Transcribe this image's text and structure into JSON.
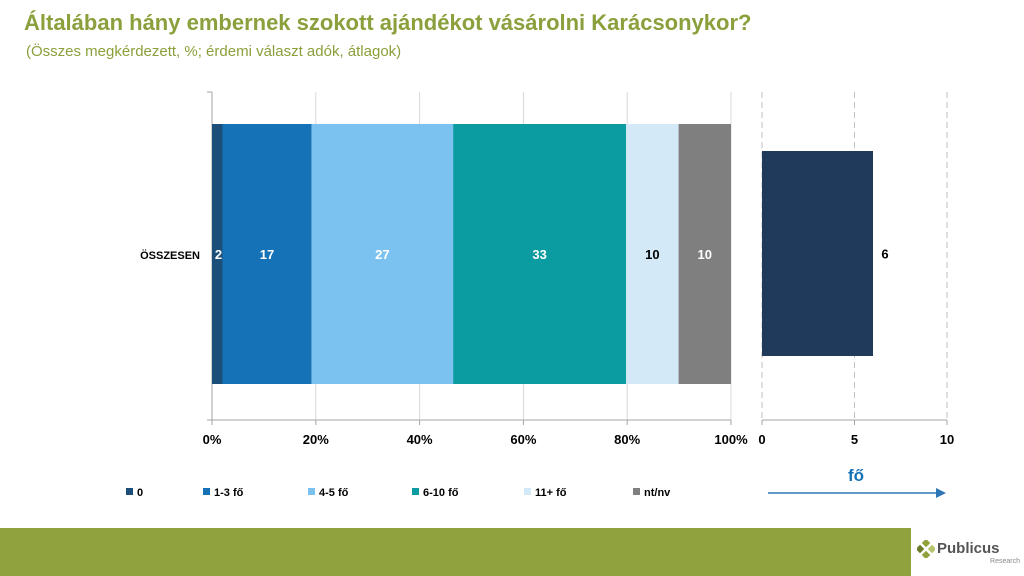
{
  "title": "Általában hány embernek szokott ajándékot vásárolni Karácsonykor?",
  "subtitle": "(Összes megkérdezett, %; érdemi választ adók, átlagok)",
  "chart_data": [
    {
      "type": "bar",
      "orientation": "horizontal",
      "stacked": true,
      "categories": [
        "ÖSSZESEN"
      ],
      "xlim": [
        0,
        100
      ],
      "xticks": [
        "0%",
        "20%",
        "40%",
        "60%",
        "80%",
        "100%"
      ],
      "tick_values": [
        0,
        20,
        40,
        60,
        80,
        100
      ],
      "grid": true,
      "legend_position": "bottom",
      "series": [
        {
          "name": "0",
          "values": [
            2
          ],
          "label": "2",
          "color": "#1b4f7a"
        },
        {
          "name": "1-3 fő",
          "values": [
            17
          ],
          "label": "17",
          "color": "#1572b6"
        },
        {
          "name": "4-5 fő",
          "values": [
            27
          ],
          "label": "27",
          "color": "#7cc2f0"
        },
        {
          "name": "6-10 fő",
          "values": [
            33
          ],
          "label": "33",
          "color": "#0a9ca0"
        },
        {
          "name": "11+ fő",
          "values": [
            10
          ],
          "label": "10",
          "color": "#d3e9f8"
        },
        {
          "name": "nt/nv",
          "values": [
            10
          ],
          "label": "10",
          "color": "#7f7f7f"
        }
      ]
    },
    {
      "type": "bar",
      "orientation": "horizontal",
      "categories": [
        "ÖSSZESEN"
      ],
      "values": [
        6
      ],
      "value_label": "6",
      "xlim": [
        0,
        10
      ],
      "xticks": [
        "0",
        "5",
        "10"
      ],
      "tick_values": [
        0,
        5,
        10
      ],
      "grid": true,
      "grid_style": "dashed",
      "color": "#1f3a5a",
      "unit_label": "fő"
    }
  ],
  "colors": {
    "title": "#8aa03c",
    "footer": "#8fa23e"
  },
  "logo": {
    "name": "Publicus",
    "sub": "Research"
  }
}
